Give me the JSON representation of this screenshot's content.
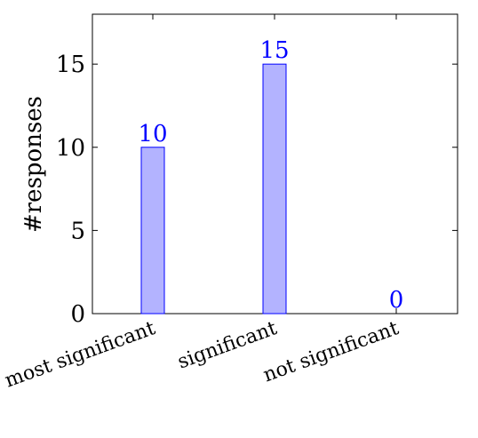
{
  "chart_data": {
    "type": "bar",
    "categories": [
      "most significant",
      "significant",
      "not significant"
    ],
    "series": [
      {
        "values": [
          10,
          15,
          0
        ],
        "color": "#0000ff",
        "fill": "#b3b3ff"
      }
    ],
    "data_labels": [
      "10",
      "15",
      "0"
    ],
    "title": "",
    "xlabel": "",
    "ylabel": "#responses",
    "ylim": [
      0,
      18
    ],
    "yticks": [
      0,
      5,
      10,
      15
    ],
    "ytick_labels": [
      "0",
      "5",
      "10",
      "15"
    ],
    "grid": false,
    "legend": "none"
  }
}
